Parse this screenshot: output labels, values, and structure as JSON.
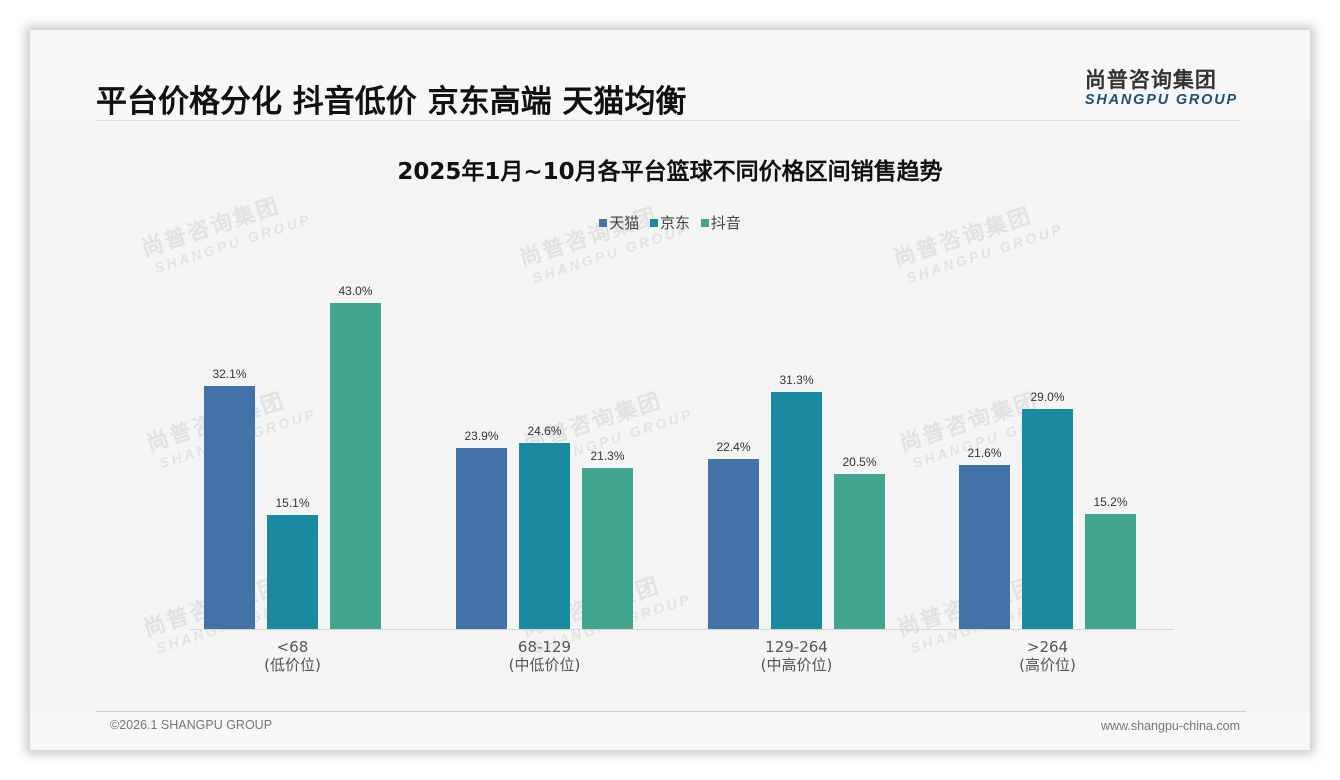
{
  "header": {
    "title": "平台价格分化 抖音低价 京东高端 天猫均衡",
    "logo_cn": "尚普咨询集团",
    "logo_en": "SHANGPU GROUP"
  },
  "watermark": {
    "cn": "尚普咨询集团",
    "en": "SHANGPU GROUP"
  },
  "footer": {
    "copyright": "©2026.1 SHANGPU GROUP",
    "website": "www.shangpu-china.com"
  },
  "colors": {
    "tmall": "#4272a8",
    "jd": "#1a8aa0",
    "douyin": "#41a58f"
  },
  "chart_data": {
    "type": "bar",
    "title": "2025年1月~10月各平台篮球不同价格区间销售趋势",
    "xlabel": "",
    "ylabel": "",
    "ylim": [
      0,
      50
    ],
    "grid": false,
    "legend_position": "top",
    "categories": [
      "<68",
      "68-129",
      "129-264",
      ">264"
    ],
    "category_sublabels": [
      "(低价位)",
      "(中低价位)",
      "(中高价位)",
      "(高价位)"
    ],
    "series": [
      {
        "name": "天猫",
        "color": "#4272a8",
        "values": [
          32.1,
          23.9,
          22.4,
          21.6
        ],
        "labels": [
          "32.1%",
          "23.9%",
          "22.4%",
          "21.6%"
        ]
      },
      {
        "name": "京东",
        "color": "#1a8aa0",
        "values": [
          15.1,
          24.6,
          31.3,
          29.0
        ],
        "labels": [
          "15.1%",
          "24.6%",
          "31.3%",
          "29.0%"
        ]
      },
      {
        "name": "抖音",
        "color": "#41a58f",
        "values": [
          43.0,
          21.3,
          20.5,
          15.2
        ],
        "labels": [
          "43.0%",
          "21.3%",
          "20.5%",
          "15.2%"
        ]
      }
    ]
  }
}
